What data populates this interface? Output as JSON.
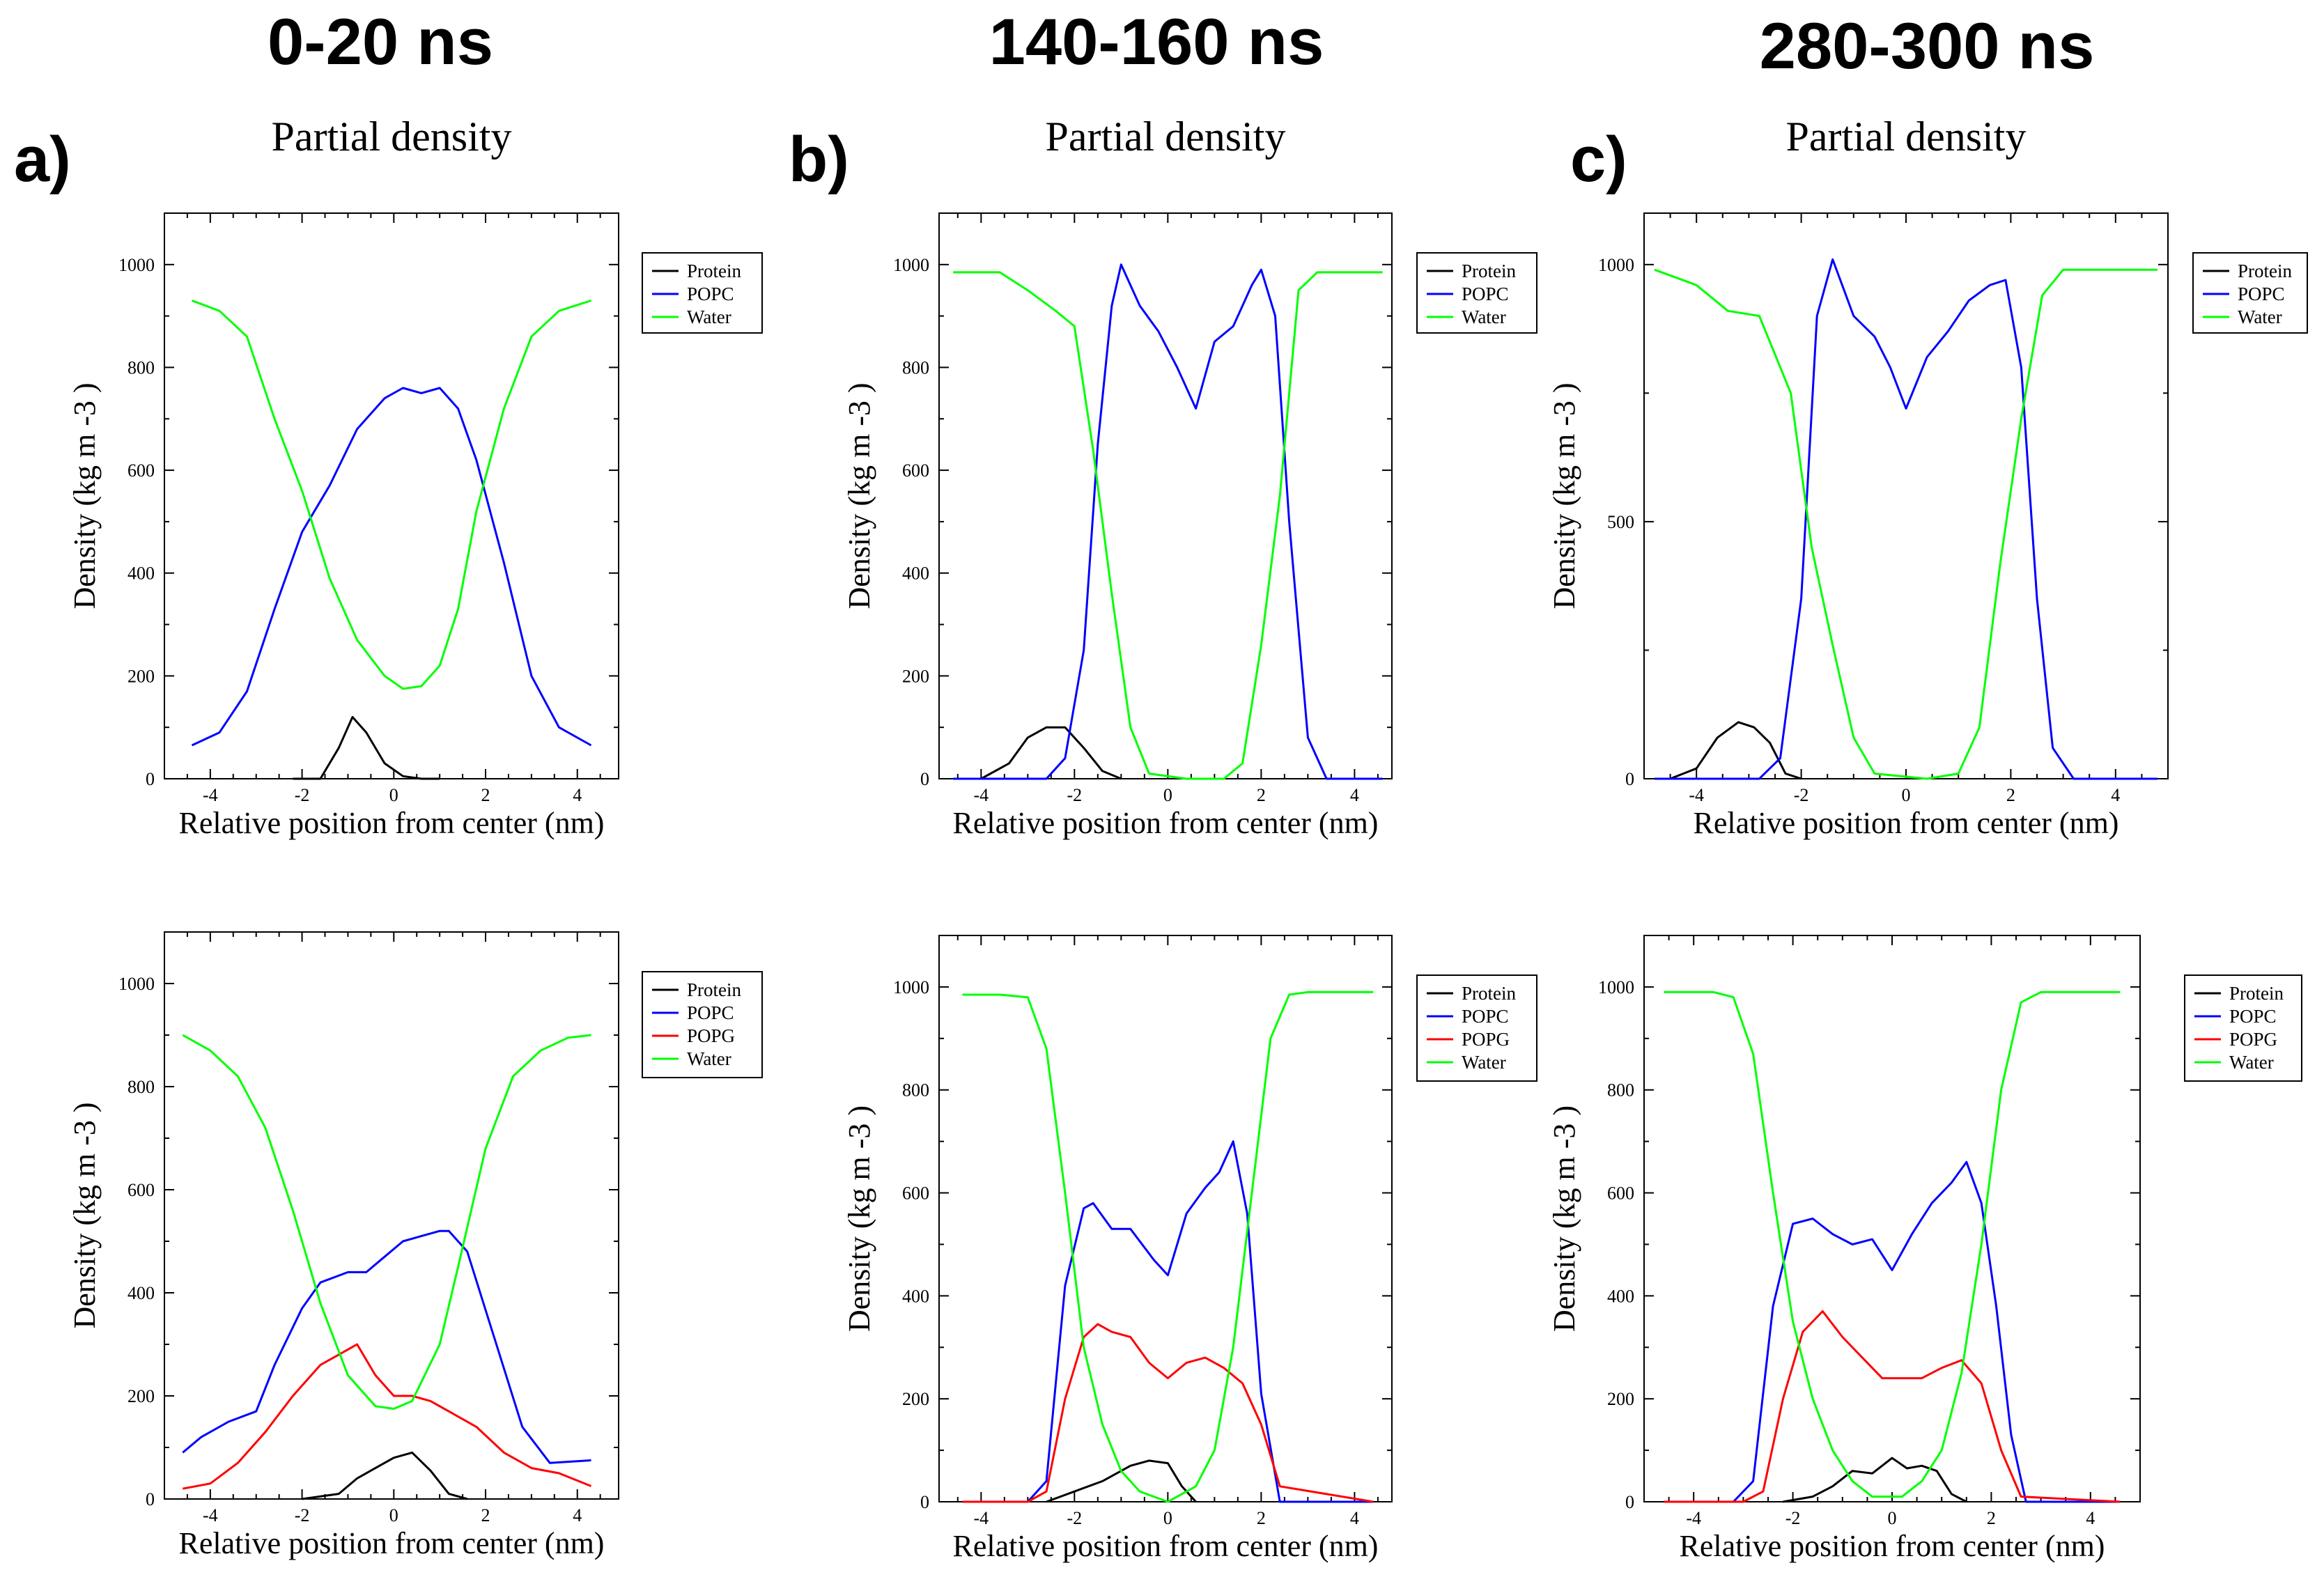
{
  "column_headers": [
    "0-20 ns",
    "140-160 ns",
    "280-300 ns"
  ],
  "panel_letters": [
    "a)",
    "b)",
    "c)"
  ],
  "colors": {
    "Protein": "#000000",
    "POPC": "#0000ff",
    "POPG": "#ff0000",
    "Water": "#00ff00"
  },
  "chart_data": [
    {
      "type": "line",
      "title": "Partial density",
      "xlabel": "Relative position from center (nm)",
      "ylabel": "Density (kg m -3 )",
      "xlim": [
        -5.0,
        4.9
      ],
      "ylim": [
        0,
        1100
      ],
      "xticks": [
        -4,
        -2,
        0,
        2,
        4
      ],
      "yticks": [
        0,
        200,
        400,
        600,
        800,
        1000
      ],
      "legend": [
        "Protein",
        "POPC",
        "Water"
      ],
      "series": [
        {
          "name": "Protein",
          "x": [
            -2.2,
            -1.6,
            -1.2,
            -0.9,
            -0.6,
            -0.2,
            0.2,
            0.6,
            1.0
          ],
          "values": [
            0,
            0,
            60,
            120,
            90,
            30,
            5,
            0,
            0
          ]
        },
        {
          "name": "POPC",
          "x": [
            -4.4,
            -3.8,
            -3.2,
            -2.6,
            -2.0,
            -1.4,
            -0.8,
            -0.2,
            0.2,
            0.6,
            1.0,
            1.4,
            1.8,
            2.4,
            3.0,
            3.6,
            4.3
          ],
          "values": [
            65,
            90,
            170,
            330,
            480,
            570,
            680,
            740,
            760,
            750,
            760,
            720,
            620,
            420,
            200,
            100,
            65
          ]
        },
        {
          "name": "Water",
          "x": [
            -4.4,
            -3.8,
            -3.2,
            -2.6,
            -2.0,
            -1.4,
            -0.8,
            -0.2,
            0.2,
            0.6,
            1.0,
            1.4,
            1.8,
            2.4,
            3.0,
            3.6,
            4.3
          ],
          "values": [
            930,
            910,
            860,
            700,
            560,
            390,
            270,
            200,
            175,
            180,
            220,
            330,
            520,
            720,
            860,
            910,
            930
          ]
        }
      ]
    },
    {
      "type": "line",
      "title": "Partial density",
      "xlabel": "Relative position from center (nm)",
      "ylabel": "Density (kg m -3 )",
      "xlim": [
        -4.9,
        4.8
      ],
      "ylim": [
        0,
        1100
      ],
      "xticks": [
        -4,
        -2,
        0,
        2,
        4
      ],
      "yticks": [
        0,
        200,
        400,
        600,
        800,
        1000
      ],
      "legend": [
        "Protein",
        "POPC",
        "Water"
      ],
      "series": [
        {
          "name": "Protein",
          "x": [
            -4.0,
            -3.4,
            -3.0,
            -2.6,
            -2.2,
            -1.8,
            -1.4,
            -1.0
          ],
          "values": [
            0,
            30,
            80,
            100,
            100,
            60,
            15,
            0
          ]
        },
        {
          "name": "POPC",
          "x": [
            -4.6,
            -2.6,
            -2.2,
            -1.8,
            -1.5,
            -1.2,
            -1.0,
            -0.6,
            -0.2,
            0.2,
            0.6,
            1.0,
            1.4,
            1.8,
            2.0,
            2.3,
            2.6,
            3.0,
            3.4,
            4.6
          ],
          "values": [
            0,
            0,
            40,
            250,
            650,
            920,
            1000,
            920,
            870,
            800,
            720,
            850,
            880,
            960,
            990,
            900,
            500,
            80,
            0,
            0
          ]
        },
        {
          "name": "Water",
          "x": [
            -4.6,
            -3.6,
            -3.0,
            -2.4,
            -2.0,
            -1.6,
            -1.2,
            -0.8,
            -0.4,
            0.4,
            1.2,
            1.6,
            2.0,
            2.4,
            2.8,
            3.2,
            4.6
          ],
          "values": [
            985,
            985,
            950,
            910,
            880,
            640,
            360,
            100,
            10,
            0,
            0,
            30,
            260,
            550,
            950,
            985,
            985
          ]
        }
      ]
    },
    {
      "type": "line",
      "title": "Partial density",
      "xlabel": "Relative position from center (nm)",
      "ylabel": "Density (kg m -3 )",
      "xlim": [
        -5.0,
        5.0
      ],
      "ylim": [
        0,
        1100
      ],
      "xticks": [
        -4,
        -2,
        0,
        2,
        4
      ],
      "yticks": [
        0,
        500,
        1000
      ],
      "legend": [
        "Protein",
        "POPC",
        "Water"
      ],
      "series": [
        {
          "name": "Protein",
          "x": [
            -4.5,
            -4.0,
            -3.6,
            -3.2,
            -2.9,
            -2.6,
            -2.3,
            -2.0
          ],
          "values": [
            0,
            20,
            80,
            110,
            100,
            70,
            10,
            0
          ]
        },
        {
          "name": "POPC",
          "x": [
            -4.8,
            -2.8,
            -2.4,
            -2.0,
            -1.7,
            -1.4,
            -1.0,
            -0.6,
            -0.3,
            0.0,
            0.4,
            0.8,
            1.2,
            1.6,
            1.9,
            2.2,
            2.5,
            2.8,
            3.2,
            4.8
          ],
          "values": [
            0,
            0,
            40,
            350,
            900,
            1010,
            900,
            860,
            800,
            720,
            820,
            870,
            930,
            960,
            970,
            800,
            350,
            60,
            0,
            0
          ]
        },
        {
          "name": "Water",
          "x": [
            -4.8,
            -4.0,
            -3.4,
            -2.8,
            -2.2,
            -1.8,
            -1.4,
            -1.0,
            -0.6,
            0.4,
            1.0,
            1.4,
            1.8,
            2.2,
            2.6,
            3.0,
            4.8
          ],
          "values": [
            990,
            960,
            910,
            900,
            750,
            450,
            260,
            80,
            10,
            0,
            10,
            100,
            420,
            700,
            940,
            990,
            990
          ]
        }
      ]
    },
    {
      "type": "line",
      "title": "",
      "xlabel": "Relative position from center (nm)",
      "ylabel": "Density (kg m -3 )",
      "xlim": [
        -5.0,
        4.9
      ],
      "ylim": [
        0,
        1100
      ],
      "xticks": [
        -4,
        -2,
        0,
        2,
        4
      ],
      "yticks": [
        0,
        200,
        400,
        600,
        800,
        1000
      ],
      "legend": [
        "Protein",
        "POPC",
        "POPG",
        "Water"
      ],
      "series": [
        {
          "name": "Protein",
          "x": [
            -2.0,
            -1.2,
            -0.8,
            -0.4,
            0.0,
            0.4,
            0.8,
            1.2,
            1.6
          ],
          "values": [
            0,
            10,
            40,
            60,
            80,
            90,
            55,
            10,
            0
          ]
        },
        {
          "name": "POPC",
          "x": [
            -4.6,
            -4.2,
            -3.6,
            -3.0,
            -2.6,
            -2.0,
            -1.6,
            -1.0,
            -0.6,
            -0.2,
            0.2,
            0.6,
            1.0,
            1.2,
            1.6,
            2.2,
            2.8,
            3.4,
            4.3
          ],
          "values": [
            90,
            120,
            150,
            170,
            260,
            370,
            420,
            440,
            440,
            470,
            500,
            510,
            520,
            520,
            480,
            310,
            140,
            70,
            75
          ]
        },
        {
          "name": "POPG",
          "x": [
            -4.6,
            -4.0,
            -3.4,
            -2.8,
            -2.2,
            -1.6,
            -1.2,
            -0.8,
            -0.4,
            0.0,
            0.4,
            0.8,
            1.2,
            1.8,
            2.4,
            3.0,
            3.6,
            4.3
          ],
          "values": [
            20,
            30,
            70,
            130,
            200,
            260,
            280,
            300,
            240,
            200,
            200,
            190,
            170,
            140,
            90,
            60,
            50,
            25
          ]
        },
        {
          "name": "Water",
          "x": [
            -4.6,
            -4.0,
            -3.4,
            -2.8,
            -2.2,
            -1.6,
            -1.0,
            -0.4,
            0.0,
            0.4,
            1.0,
            1.4,
            2.0,
            2.6,
            3.2,
            3.8,
            4.3
          ],
          "values": [
            900,
            870,
            820,
            720,
            560,
            380,
            240,
            180,
            175,
            190,
            300,
            450,
            680,
            820,
            870,
            895,
            900
          ]
        }
      ]
    },
    {
      "type": "line",
      "title": "",
      "xlabel": "Relative position from center (nm)",
      "ylabel": "Density (kg m -3 )",
      "xlim": [
        -4.9,
        4.8
      ],
      "ylim": [
        0,
        1100
      ],
      "xticks": [
        -4,
        -2,
        0,
        2,
        4
      ],
      "yticks": [
        0,
        200,
        400,
        600,
        800,
        1000
      ],
      "legend": [
        "Protein",
        "POPC",
        "POPG",
        "Water"
      ],
      "series": [
        {
          "name": "Protein",
          "x": [
            -2.6,
            -2.0,
            -1.4,
            -0.8,
            -0.4,
            0.0,
            0.3,
            0.6
          ],
          "values": [
            0,
            20,
            40,
            70,
            80,
            75,
            30,
            0
          ]
        },
        {
          "name": "POPC",
          "x": [
            -4.4,
            -3.0,
            -2.6,
            -2.2,
            -1.8,
            -1.6,
            -1.2,
            -0.8,
            -0.3,
            0.0,
            0.4,
            0.8,
            1.1,
            1.4,
            1.7,
            2.0,
            2.4,
            4.4
          ],
          "values": [
            0,
            0,
            40,
            420,
            570,
            580,
            530,
            530,
            470,
            440,
            560,
            610,
            640,
            700,
            560,
            210,
            0,
            0
          ]
        },
        {
          "name": "POPG",
          "x": [
            -4.4,
            -3.0,
            -2.6,
            -2.2,
            -1.8,
            -1.5,
            -1.2,
            -0.8,
            -0.4,
            0.0,
            0.4,
            0.8,
            1.2,
            1.6,
            2.0,
            2.4,
            4.4
          ],
          "values": [
            0,
            0,
            20,
            200,
            320,
            345,
            330,
            320,
            270,
            240,
            270,
            280,
            260,
            230,
            150,
            30,
            0
          ]
        },
        {
          "name": "Water",
          "x": [
            -4.4,
            -3.6,
            -3.0,
            -2.6,
            -2.2,
            -1.8,
            -1.4,
            -1.0,
            -0.6,
            0.0,
            0.6,
            1.0,
            1.4,
            1.8,
            2.2,
            2.6,
            3.0,
            4.4
          ],
          "values": [
            985,
            985,
            980,
            880,
            600,
            300,
            150,
            60,
            20,
            0,
            30,
            100,
            300,
            600,
            900,
            985,
            990,
            990
          ]
        }
      ]
    },
    {
      "type": "line",
      "title": "",
      "xlabel": "Relative position from center (nm)",
      "ylabel": "Density (kg m -3 )",
      "xlim": [
        -5.0,
        5.0
      ],
      "ylim": [
        0,
        1100
      ],
      "xticks": [
        -4,
        -2,
        0,
        2,
        4
      ],
      "yticks": [
        0,
        200,
        400,
        600,
        800,
        1000
      ],
      "legend": [
        "Protein",
        "POPC",
        "POPG",
        "Water"
      ],
      "series": [
        {
          "name": "Protein",
          "x": [
            -2.2,
            -1.6,
            -1.2,
            -0.8,
            -0.4,
            0.0,
            0.3,
            0.6,
            0.9,
            1.2,
            1.5
          ],
          "values": [
            0,
            10,
            30,
            60,
            55,
            85,
            65,
            70,
            60,
            15,
            0
          ]
        },
        {
          "name": "POPC",
          "x": [
            -4.6,
            -3.2,
            -2.8,
            -2.4,
            -2.0,
            -1.6,
            -1.2,
            -0.8,
            -0.4,
            0.0,
            0.4,
            0.8,
            1.2,
            1.5,
            1.8,
            2.1,
            2.4,
            2.7,
            4.6
          ],
          "values": [
            0,
            0,
            40,
            380,
            540,
            550,
            520,
            500,
            510,
            450,
            520,
            580,
            620,
            660,
            580,
            380,
            130,
            0,
            0
          ]
        },
        {
          "name": "POPG",
          "x": [
            -4.6,
            -3.0,
            -2.6,
            -2.2,
            -1.8,
            -1.4,
            -1.0,
            -0.6,
            -0.2,
            0.2,
            0.6,
            1.0,
            1.4,
            1.8,
            2.2,
            2.6,
            4.6
          ],
          "values": [
            0,
            0,
            20,
            200,
            330,
            370,
            320,
            280,
            240,
            240,
            240,
            260,
            275,
            230,
            100,
            10,
            0
          ]
        },
        {
          "name": "Water",
          "x": [
            -4.6,
            -3.6,
            -3.2,
            -2.8,
            -2.4,
            -2.0,
            -1.6,
            -1.2,
            -0.8,
            -0.4,
            0.2,
            0.6,
            1.0,
            1.4,
            1.8,
            2.2,
            2.6,
            3.0,
            4.6
          ],
          "values": [
            990,
            990,
            980,
            870,
            600,
            350,
            200,
            100,
            40,
            10,
            10,
            40,
            100,
            250,
            500,
            800,
            970,
            990,
            990
          ]
        }
      ]
    }
  ]
}
